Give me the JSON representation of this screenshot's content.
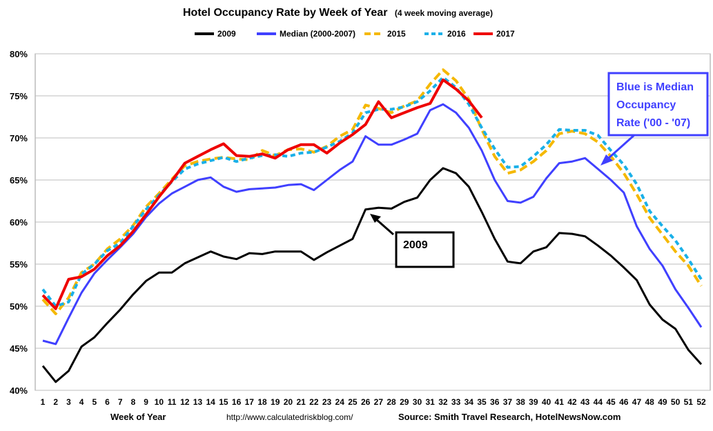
{
  "chart_data": {
    "type": "line",
    "title": "Hotel Occupancy Rate by  Week of Year",
    "subtitle": "(4 week moving average)",
    "xlabel": "Week of Year",
    "ylabel": "",
    "ylim": [
      40,
      80
    ],
    "yticks": [
      "40%",
      "45%",
      "50%",
      "55%",
      "60%",
      "65%",
      "70%",
      "75%",
      "80%"
    ],
    "x": [
      1,
      2,
      3,
      4,
      5,
      6,
      7,
      8,
      9,
      10,
      11,
      12,
      13,
      14,
      15,
      16,
      17,
      18,
      19,
      20,
      21,
      22,
      23,
      24,
      25,
      26,
      27,
      28,
      29,
      30,
      31,
      32,
      33,
      34,
      35,
      36,
      37,
      38,
      39,
      40,
      41,
      42,
      43,
      44,
      45,
      46,
      47,
      48,
      49,
      50,
      51,
      52
    ],
    "grid": "horizontal",
    "legend_position": "top",
    "series": [
      {
        "name": "2009",
        "color": "#000000",
        "dash": "solid",
        "values": [
          42.9,
          41.0,
          42.3,
          45.2,
          46.3,
          48.0,
          49.6,
          51.4,
          53.0,
          54.0,
          54.0,
          55.1,
          55.8,
          56.5,
          55.9,
          55.6,
          56.3,
          56.2,
          56.5,
          56.5,
          56.5,
          55.5,
          56.4,
          57.2,
          58.0,
          61.5,
          61.7,
          61.6,
          62.4,
          62.9,
          65.0,
          66.4,
          65.8,
          64.2,
          61.2,
          58.0,
          55.3,
          55.1,
          56.5,
          57.0,
          58.7,
          58.6,
          58.3,
          57.2,
          56.0,
          54.6,
          53.1,
          50.2,
          48.4,
          47.3,
          44.8,
          43.1
        ]
      },
      {
        "name": "Median (2000-2007)",
        "color": "#4040ff",
        "dash": "solid",
        "values": [
          45.9,
          45.5,
          48.6,
          51.6,
          53.9,
          55.5,
          57.0,
          58.6,
          60.6,
          62.2,
          63.4,
          64.2,
          65.0,
          65.3,
          64.2,
          63.6,
          63.9,
          64.0,
          64.1,
          64.4,
          64.5,
          63.8,
          65.0,
          66.2,
          67.2,
          70.2,
          69.2,
          69.2,
          69.8,
          70.5,
          73.3,
          74.0,
          73.0,
          71.2,
          68.5,
          65.0,
          62.5,
          62.3,
          63.0,
          65.2,
          67.0,
          67.2,
          67.6,
          66.3,
          65.0,
          63.5,
          59.5,
          56.8,
          54.8,
          52.0,
          49.8,
          47.5
        ]
      },
      {
        "name": "2015",
        "color": "#f5b800",
        "dash": "long-dash",
        "values": [
          50.8,
          49.1,
          51.0,
          54.0,
          55.0,
          56.8,
          58.0,
          59.6,
          61.8,
          63.4,
          65.1,
          66.7,
          67.2,
          67.5,
          67.7,
          67.5,
          67.4,
          68.5,
          67.9,
          68.6,
          68.7,
          68.3,
          69.0,
          70.2,
          71.0,
          73.9,
          73.5,
          73.0,
          73.8,
          74.4,
          76.4,
          78.1,
          76.8,
          74.6,
          71.0,
          67.8,
          65.8,
          66.2,
          67.2,
          68.5,
          70.5,
          70.8,
          70.5,
          69.5,
          67.8,
          65.8,
          63.3,
          60.5,
          58.5,
          56.5,
          54.8,
          52.4
        ]
      },
      {
        "name": "2016",
        "color": "#1ab0e8",
        "dash": "short-dash",
        "values": [
          52.0,
          50.0,
          50.5,
          53.8,
          55.0,
          56.6,
          57.5,
          59.5,
          61.5,
          63.2,
          64.8,
          66.3,
          66.9,
          67.3,
          67.7,
          67.2,
          67.6,
          67.9,
          68.0,
          67.8,
          68.2,
          68.3,
          68.9,
          69.6,
          70.6,
          73.0,
          73.4,
          73.4,
          73.7,
          74.3,
          75.6,
          77.2,
          76.0,
          74.0,
          71.2,
          68.7,
          66.5,
          66.6,
          67.8,
          69.2,
          71.0,
          70.9,
          70.9,
          70.3,
          68.5,
          66.8,
          64.5,
          61.3,
          59.5,
          57.8,
          55.6,
          53.2
        ]
      },
      {
        "name": "2017",
        "color": "#ee0000",
        "dash": "solid",
        "values": [
          51.3,
          49.7,
          53.2,
          53.5,
          54.4,
          56.0,
          57.2,
          58.9,
          60.9,
          63.0,
          64.9,
          67.0,
          67.8,
          68.6,
          69.3,
          67.9,
          67.8,
          68.1,
          67.6,
          68.6,
          69.2,
          69.2,
          68.2,
          69.4,
          70.4,
          71.6,
          74.3,
          72.4,
          73.0,
          73.6,
          74.1,
          76.9,
          75.8,
          74.4,
          72.4,
          null,
          null,
          null,
          null,
          null,
          null,
          null,
          null,
          null,
          null,
          null,
          null,
          null,
          null,
          null,
          null,
          null
        ]
      }
    ],
    "annotations": [
      {
        "text": "2009",
        "points_to_week": 26
      },
      {
        "text": "Blue is Median Occupancy Rate ('00 - '07)",
        "lines": [
          "Blue is Median",
          "Occupancy",
          "Rate ('00 - '07)"
        ],
        "points_to_week": 43
      }
    ]
  },
  "footer": {
    "x_axis_label": "Week of Year",
    "url": "http://www.calculatedriskblog.com/",
    "source": "Source: Smith Travel Research, HotelNewsNow.com"
  }
}
